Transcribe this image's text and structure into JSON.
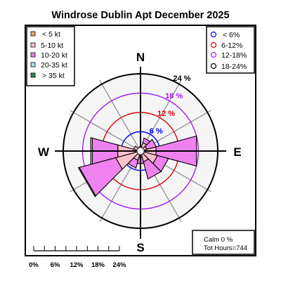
{
  "title": "Windrose  Dublin Apt December 2025",
  "compass": {
    "n": "N",
    "e": "E",
    "s": "S",
    "w": "W"
  },
  "speed_legend": [
    {
      "label": "< 5  kt",
      "color": "#f4a460"
    },
    {
      "label": "5-10 kt",
      "color": "#ffc0cb"
    },
    {
      "label": "10-20 kt",
      "color": "#ee82ee"
    },
    {
      "label": "20-35 kt",
      "color": "#b0e0e6"
    },
    {
      "label": "> 35 kt",
      "color": "#2e8b57"
    }
  ],
  "ring_legend": [
    {
      "label": "< 6%",
      "color": "#0000ff"
    },
    {
      "label": "6-12%",
      "color": "#dd0000"
    },
    {
      "label": "12-18%",
      "color": "#a020f0"
    },
    {
      "label": "18-24%",
      "color": "#000000"
    }
  ],
  "calm_text": "Calm 0 %",
  "hours_text": "Tot Hours=744",
  "scale_labels": [
    "0%",
    "6%",
    "12%",
    "18%",
    "24%"
  ],
  "chart_data": {
    "type": "windrose",
    "title": "Windrose  Dublin Apt December 2025",
    "speed_bins": [
      "< 5  kt",
      "5-10 kt",
      "10-20 kt",
      "20-35 kt",
      "> 35 kt"
    ],
    "bin_colors": [
      "#f4a460",
      "#ffc0cb",
      "#ee82ee",
      "#b0e0e6",
      "#2e8b57"
    ],
    "rings": [
      {
        "value": 6,
        "label": "6 %",
        "color": "#0000ff"
      },
      {
        "value": 12,
        "label": "12 %",
        "color": "#dd0000"
      },
      {
        "value": 18,
        "label": "18 %",
        "color": "#a020f0"
      },
      {
        "value": 24,
        "label": "24 %",
        "color": "#000000"
      }
    ],
    "rmax": 24,
    "sector_width_deg": 30,
    "sectors": [
      {
        "direction_deg": 0,
        "values": [
          0.6,
          0.8,
          0.0,
          0.0,
          0
        ]
      },
      {
        "direction_deg": 30,
        "values": [
          1.2,
          1.5,
          1.5,
          0.0,
          0
        ]
      },
      {
        "direction_deg": 60,
        "values": [
          0.6,
          1.5,
          3.0,
          0.0,
          0
        ]
      },
      {
        "direction_deg": 90,
        "values": [
          1.5,
          3.5,
          13.0,
          0.0,
          0
        ]
      },
      {
        "direction_deg": 120,
        "values": [
          1.2,
          4.3,
          3.5,
          0.0,
          0
        ]
      },
      {
        "direction_deg": 150,
        "values": [
          1.2,
          2.3,
          5.5,
          0.0,
          0
        ]
      },
      {
        "direction_deg": 180,
        "values": [
          1.0,
          1.0,
          2.0,
          0.0,
          0
        ]
      },
      {
        "direction_deg": 210,
        "values": [
          1.2,
          1.8,
          2.5,
          0.0,
          0
        ]
      },
      {
        "direction_deg": 240,
        "values": [
          1.0,
          7.0,
          11.7,
          0.3,
          0
        ]
      },
      {
        "direction_deg": 270,
        "values": [
          0.8,
          6.5,
          8.2,
          0.5,
          0
        ]
      },
      {
        "direction_deg": 300,
        "values": [
          0.6,
          1.6,
          0.0,
          0.0,
          0
        ]
      },
      {
        "direction_deg": 330,
        "values": [
          0.6,
          0.6,
          0.0,
          0.0,
          0
        ]
      }
    ]
  }
}
